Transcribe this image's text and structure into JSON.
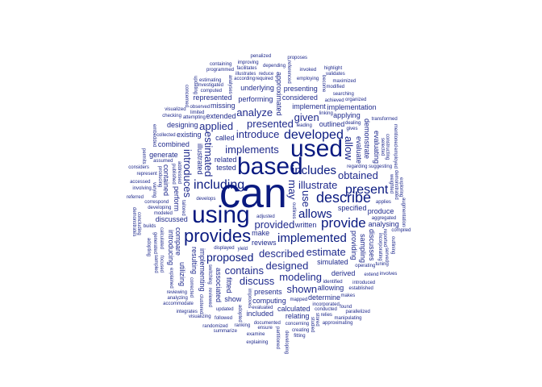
{
  "colors": {
    "word": "#1f2a8c",
    "word_strong": "#0a1a80",
    "background": "#ffffff"
  },
  "words_hero": [
    "can",
    "based",
    "used",
    "using",
    "provides",
    "implemented",
    "describe",
    "allows",
    "provide",
    "present",
    "developed",
    "includes",
    "including",
    "proposed"
  ],
  "words_large": [
    "implements",
    "provided",
    "illustrate",
    "may",
    "described",
    "introduce",
    "designed",
    "estimated",
    "contains",
    "presented",
    "modeling",
    "use",
    "estimate",
    "discuss",
    "analyze",
    "introduces",
    "given",
    "applied",
    "shown",
    "allow",
    "obtained"
  ],
  "words_medium": [
    "called",
    "presents",
    "illustrated",
    "specified",
    "simulated",
    "associated",
    "performing",
    "extended",
    "implementing",
    "implement",
    "computing",
    "providing",
    "considered",
    "derived",
    "perform",
    "make",
    "calculated",
    "approximated",
    "outlined",
    "discussed",
    "sampling",
    "written",
    "missing",
    "fitted",
    "existing",
    "allowing",
    "evaluate",
    "reviews",
    "related",
    "resulting",
    "underlying",
    "determine",
    "compare",
    "included",
    "show",
    "contained",
    "combined",
    "presenting",
    "discusses",
    "generate",
    "designing",
    "introducing",
    "applying",
    "analysing",
    "demonstrate",
    "produce",
    "tested",
    "utilizing",
    "represented",
    "relating",
    "evaluating",
    "implementation"
  ],
  "words_small": [
    "correspond",
    "mapped",
    "corrected",
    "yield",
    "develops",
    "improves",
    "displayed",
    "leading",
    "outlines",
    "developing",
    "operating",
    "producing",
    "aggregated",
    "attempting",
    "reviewed",
    "incorporated",
    "assumed",
    "published",
    "updated",
    "documented",
    "analyses",
    "linking",
    "regarding",
    "calculated",
    "dealing",
    "according",
    "become",
    "observed",
    "limited",
    "adopted",
    "achieved",
    "applies",
    "addressed",
    "concerning",
    "modeled",
    "weighted",
    "makes",
    "required",
    "varying",
    "gives",
    "computed",
    "reported",
    "extend",
    "ensure",
    "studied",
    "employing",
    "suggesting",
    "incorporating",
    "introduced",
    "evaluated",
    "selected",
    "followed",
    "collected",
    "stored",
    "adjusted",
    "conducted",
    "generated",
    "illustrates",
    "identified",
    "demonstrated",
    "represent",
    "reduce",
    "clustered",
    "established",
    "investigated",
    "referenced",
    "examine",
    "found",
    "focused",
    "builds",
    "searching",
    "explained",
    "modified",
    "checking",
    "constructing",
    "randomized",
    "depending",
    "concerned",
    "invoked",
    "relies",
    "tailored",
    "facilitates",
    "reviewing",
    "exploring",
    "organized",
    "tuning",
    "partitioned",
    "ranking",
    "estimating",
    "outlining",
    "creating",
    "analyzing",
    "sampled",
    "summarize",
    "programmed",
    "augmentation",
    "visualized",
    "approximating",
    "switching",
    "manipulating",
    "accommodate",
    "concluding",
    "accessed",
    "penalized",
    "employed",
    "improving",
    "fitting",
    "updating",
    "compiled",
    "parallelized",
    "embedded",
    "involving",
    "visualizing",
    "adopting",
    "validates",
    "explaining",
    "mentioned",
    "involves",
    "containing",
    "served",
    "maximized",
    "proposes",
    "permits",
    "highlight",
    "considers",
    "demonstrates",
    "integrates",
    "transformed",
    "developing",
    "referred"
  ]
}
